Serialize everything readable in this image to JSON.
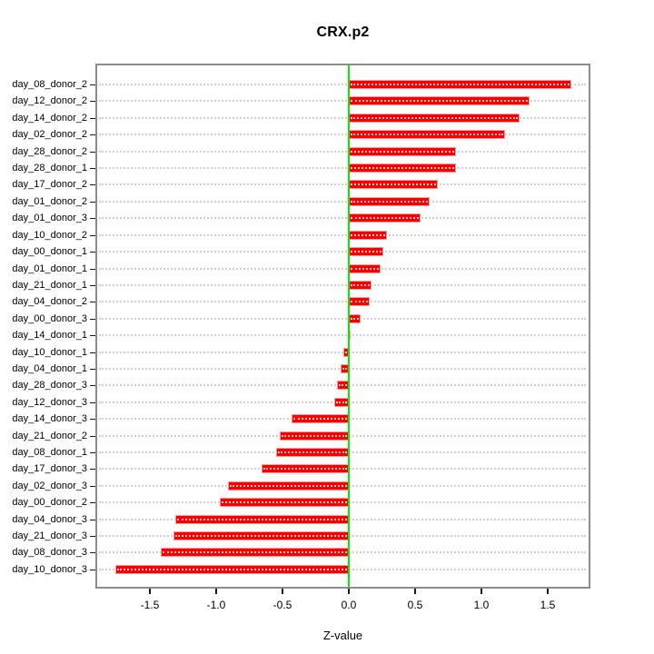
{
  "window": {
    "title": "CRX.p2"
  },
  "chart_data": {
    "type": "bar",
    "orientation": "horizontal",
    "title": "CRX.p2",
    "xlabel": "Z-value",
    "ylabel": "",
    "categories": [
      "day_08_donor_2",
      "day_12_donor_2",
      "day_14_donor_2",
      "day_02_donor_2",
      "day_28_donor_2",
      "day_28_donor_1",
      "day_17_donor_2",
      "day_01_donor_2",
      "day_01_donor_3",
      "day_10_donor_2",
      "day_00_donor_1",
      "day_01_donor_1",
      "day_21_donor_1",
      "day_04_donor_2",
      "day_00_donor_3",
      "day_14_donor_1",
      "day_10_donor_1",
      "day_04_donor_1",
      "day_28_donor_3",
      "day_12_donor_3",
      "day_14_donor_3",
      "day_21_donor_2",
      "day_08_donor_1",
      "day_17_donor_3",
      "day_02_donor_3",
      "day_00_donor_2",
      "day_04_donor_3",
      "day_21_donor_3",
      "day_08_donor_3",
      "day_10_donor_3"
    ],
    "values": [
      1.68,
      1.36,
      1.29,
      1.18,
      0.81,
      0.81,
      0.67,
      0.61,
      0.54,
      0.29,
      0.26,
      0.24,
      0.17,
      0.16,
      0.09,
      0.01,
      -0.04,
      -0.06,
      -0.09,
      -0.11,
      -0.43,
      -0.52,
      -0.55,
      -0.66,
      -0.91,
      -0.97,
      -1.31,
      -1.32,
      -1.42,
      -1.76
    ],
    "x_ticks": [
      -1.5,
      -1.0,
      -0.5,
      0.0,
      0.5,
      1.0,
      1.5
    ],
    "x_tick_labels": [
      "-1.5",
      "-1.0",
      "-0.5",
      "0.0",
      "0.5",
      "1.0",
      "1.5"
    ],
    "xlim": [
      -1.9,
      1.81
    ],
    "grid": "horizontal dotted line per category, drawn across bars",
    "legend": "none",
    "zero_line_at": 0,
    "colors": {
      "bar": "#fb0000",
      "bar_border": "#ff9a9a",
      "zero_line": "#00f000",
      "grid": "#cfcfcf",
      "box_border": "#8d8d8d",
      "text": "#000000",
      "background": "#ffffff"
    }
  }
}
